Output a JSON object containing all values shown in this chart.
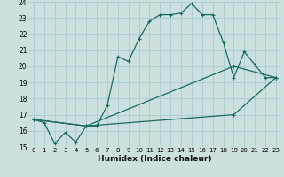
{
  "xlabel": "Humidex (Indice chaleur)",
  "bg_color": "#cce0e0",
  "grid_color": "#aacccc",
  "line_color": "#1a6b5a",
  "xlim": [
    -0.5,
    23.5
  ],
  "ylim": [
    15,
    24
  ],
  "xticks": [
    0,
    1,
    2,
    3,
    4,
    5,
    6,
    7,
    8,
    9,
    10,
    11,
    12,
    13,
    14,
    15,
    16,
    17,
    18,
    19,
    20,
    21,
    22,
    23
  ],
  "yticks": [
    15,
    16,
    17,
    18,
    19,
    20,
    21,
    22,
    23,
    24
  ],
  "series": [
    {
      "x": [
        0,
        1,
        2,
        3,
        4,
        5,
        6,
        7,
        8,
        9,
        10,
        11,
        12,
        13,
        14,
        15,
        16,
        17,
        18,
        19,
        20,
        21,
        22,
        23
      ],
      "y": [
        16.7,
        16.5,
        15.2,
        15.9,
        15.3,
        16.3,
        16.3,
        17.6,
        20.6,
        20.3,
        21.7,
        22.8,
        23.2,
        23.2,
        23.3,
        23.9,
        23.2,
        23.2,
        21.5,
        19.3,
        20.9,
        20.1,
        19.3,
        19.3
      ]
    },
    {
      "x": [
        0,
        5,
        19,
        23
      ],
      "y": [
        16.7,
        16.3,
        20.0,
        19.3
      ]
    },
    {
      "x": [
        0,
        5,
        19,
        23
      ],
      "y": [
        16.7,
        16.3,
        17.0,
        19.3
      ]
    }
  ]
}
